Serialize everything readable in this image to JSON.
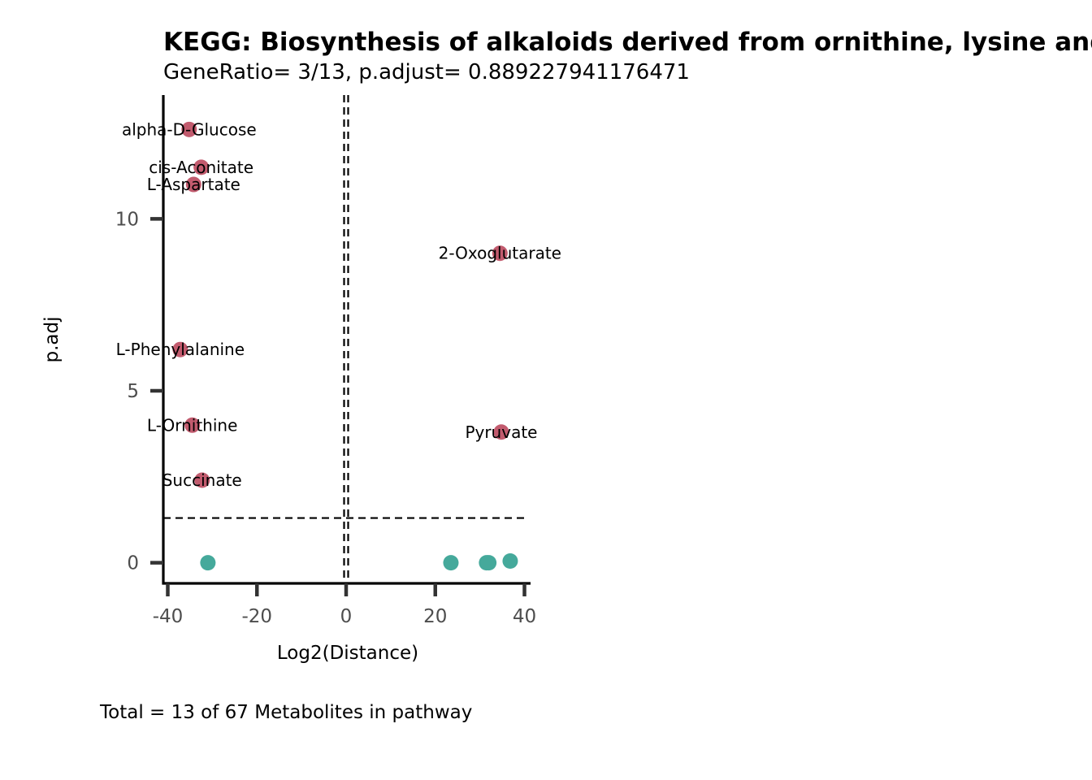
{
  "chart_data": {
    "type": "scatter",
    "title": "KEGG: Biosynthesis of alkaloids derived from ornithine, lysine and nicotinic acid",
    "subtitle": "GeneRatio= 3/13, p.adjust= 0.889227941176471",
    "xlabel": "Log2(Distance)",
    "ylabel": "p.adj",
    "caption": "Total = 13 of 67 Metabolites in pathway",
    "xlim": [
      -41,
      41
    ],
    "ylim": [
      -0.6,
      13.6
    ],
    "x_ticks": [
      -40,
      -20,
      0,
      20,
      40
    ],
    "y_ticks": [
      0,
      5,
      10
    ],
    "reference_lines": {
      "x": [
        0
      ],
      "y": [
        1.3
      ]
    },
    "grid": false,
    "legend": "none",
    "colors": {
      "significant": "#c25b6e",
      "not_significant": "#45a99b"
    },
    "points": [
      {
        "label": "alpha-D-Glucose",
        "x": -35.2,
        "y": 12.6,
        "group": "significant"
      },
      {
        "label": "cis-Aconitate",
        "x": -32.5,
        "y": 11.5,
        "group": "significant"
      },
      {
        "label": "L-Aspartate",
        "x": -34.2,
        "y": 11.0,
        "group": "significant"
      },
      {
        "label": "2-Oxoglutarate",
        "x": 34.5,
        "y": 9.0,
        "group": "significant"
      },
      {
        "label": "L-Phenylalanine",
        "x": -37.2,
        "y": 6.2,
        "group": "significant"
      },
      {
        "label": "L-Ornithine",
        "x": -34.5,
        "y": 4.0,
        "group": "significant"
      },
      {
        "label": "Pyruvate",
        "x": 34.8,
        "y": 3.8,
        "group": "significant"
      },
      {
        "label": "Succinate",
        "x": -32.3,
        "y": 2.4,
        "group": "significant"
      },
      {
        "label": "",
        "x": -31.0,
        "y": 0.0,
        "group": "not_significant"
      },
      {
        "label": "",
        "x": 23.5,
        "y": 0.0,
        "group": "not_significant"
      },
      {
        "label": "",
        "x": 31.5,
        "y": 0.0,
        "group": "not_significant"
      },
      {
        "label": "",
        "x": 32.0,
        "y": 0.0,
        "group": "not_significant"
      },
      {
        "label": "",
        "x": 36.8,
        "y": 0.05,
        "group": "not_significant"
      }
    ]
  }
}
